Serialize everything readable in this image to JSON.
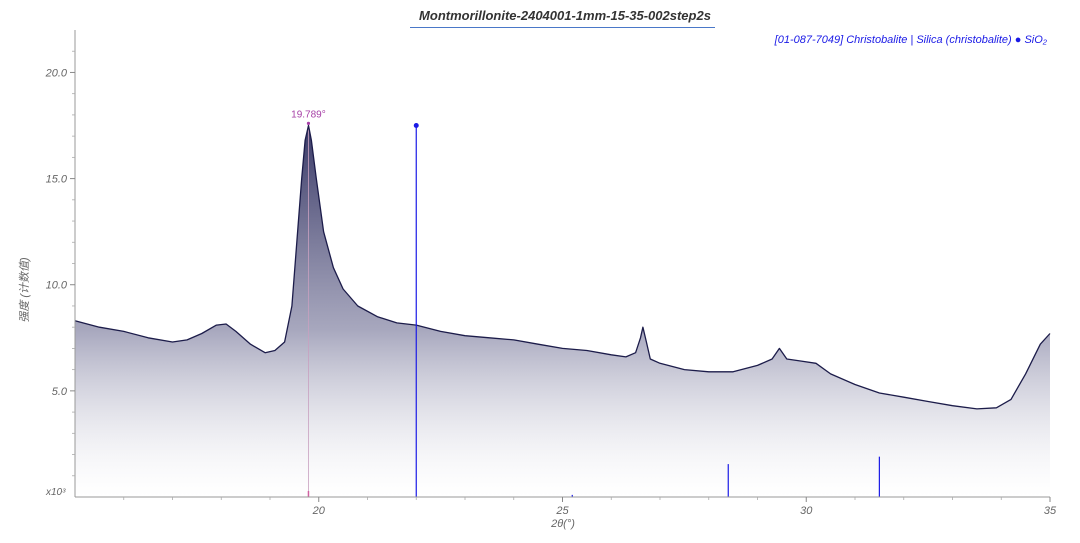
{
  "chart_data": {
    "type": "line",
    "title": "Montmorillonite-2404001-1mm-15-35-002step2s",
    "xlabel": "2θ(°)",
    "ylabel": "强度 (计数值)",
    "y_multiplier": "x10³",
    "xlim": [
      15,
      35
    ],
    "ylim": [
      0,
      22
    ],
    "x_ticks": [
      "20",
      "25",
      "30",
      "35"
    ],
    "y_ticks": [
      "5.0",
      "10.0",
      "15.0",
      "20.0"
    ],
    "grid": false,
    "legend": "top-right",
    "series": [
      {
        "color": "#1c1c4a",
        "x": [
          15.0,
          15.5,
          16.0,
          16.5,
          17.0,
          17.3,
          17.6,
          17.9,
          18.1,
          18.3,
          18.6,
          18.9,
          19.1,
          19.3,
          19.45,
          19.55,
          19.65,
          19.72,
          19.789,
          19.85,
          19.95,
          20.1,
          20.3,
          20.5,
          20.8,
          21.2,
          21.6,
          22.0,
          22.5,
          23.0,
          23.5,
          24.0,
          24.5,
          25.0,
          25.5,
          26.0,
          26.3,
          26.5,
          26.6,
          26.65,
          26.72,
          26.8,
          27.0,
          27.5,
          28.0,
          28.5,
          29.0,
          29.3,
          29.45,
          29.6,
          29.9,
          30.2,
          30.5,
          31.0,
          31.5,
          32.0,
          32.5,
          33.0,
          33.5,
          33.9,
          34.2,
          34.5,
          34.8,
          35.0
        ],
        "y": [
          8.3,
          8.0,
          7.8,
          7.5,
          7.3,
          7.4,
          7.7,
          8.1,
          8.15,
          7.8,
          7.2,
          6.8,
          6.9,
          7.3,
          9.0,
          12.0,
          15.0,
          16.8,
          17.5,
          16.8,
          15.0,
          12.5,
          10.8,
          9.8,
          9.0,
          8.5,
          8.2,
          8.1,
          7.8,
          7.6,
          7.5,
          7.4,
          7.2,
          7.0,
          6.9,
          6.7,
          6.6,
          6.8,
          7.5,
          8.0,
          7.3,
          6.5,
          6.3,
          6.0,
          5.9,
          5.9,
          6.2,
          6.5,
          7.0,
          6.5,
          6.4,
          6.3,
          5.8,
          5.3,
          4.9,
          4.7,
          4.5,
          4.3,
          4.15,
          4.2,
          4.6,
          5.8,
          7.2,
          7.7
        ]
      }
    ],
    "peak_label": {
      "x": 19.789,
      "y": 17.6,
      "text": "19.789°"
    },
    "reference": {
      "label": "[01-087-7049] Christobalite | Silica (christobalite) ● SiO₂",
      "color": "#1a1ae6",
      "lines": [
        {
          "x": 22.0,
          "y": 17.5
        },
        {
          "x": 25.2,
          "y": 0.1
        },
        {
          "x": 28.4,
          "y": 1.55
        },
        {
          "x": 31.5,
          "y": 1.9
        }
      ]
    },
    "marker_line": {
      "x": 19.789,
      "color": "#d060a0"
    }
  }
}
